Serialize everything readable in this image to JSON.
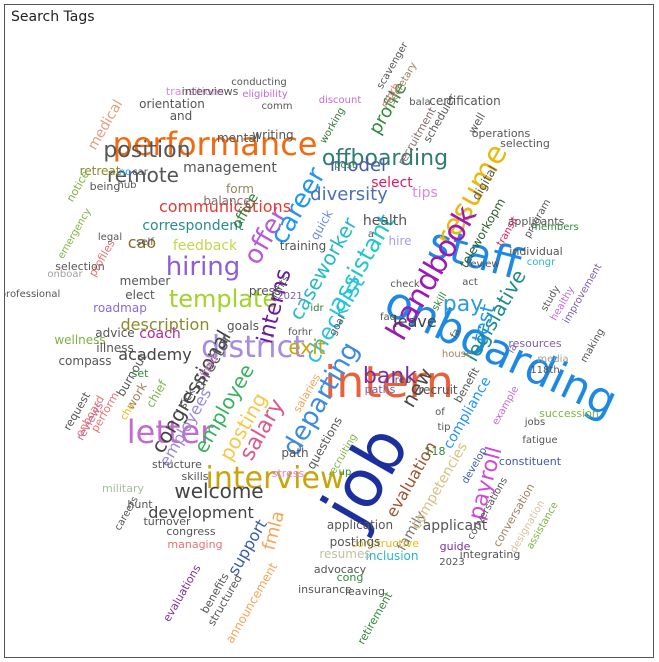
{
  "panel": {
    "title": "Search Tags"
  },
  "word_cloud": {
    "words": [
      {
        "text": "job",
        "color": "#1c2f9e"
      },
      {
        "text": "onboarding",
        "color": "#1e88e5"
      },
      {
        "text": "intern",
        "color": "#e8613a"
      },
      {
        "text": "interview",
        "color": "#c9a40a"
      },
      {
        "text": "staff",
        "color": "#1e88e5"
      },
      {
        "text": "performance",
        "color": "#f26a0f"
      },
      {
        "text": "resume",
        "color": "#e8b90f"
      },
      {
        "text": "handbook",
        "color": "#9c1ab3"
      },
      {
        "text": "letter",
        "color": "#c46bd0"
      },
      {
        "text": "district",
        "color": "#a58ce0"
      },
      {
        "text": "offboarding",
        "color": "#2e7d6f"
      },
      {
        "text": "departing",
        "color": "#3d8be0"
      },
      {
        "text": "assistant",
        "color": "#1fc7c9"
      },
      {
        "text": "hiring",
        "color": "#8e5ed8"
      },
      {
        "text": "offer",
        "color": "#b65bd6"
      },
      {
        "text": "career",
        "color": "#2196f3"
      },
      {
        "text": "template",
        "color": "#a3d32a"
      },
      {
        "text": "checklist",
        "color": "#2bc0e0"
      },
      {
        "text": "salary",
        "color": "#d95a8a"
      },
      {
        "text": "welcome",
        "color": "#444444"
      },
      {
        "text": "employee",
        "color": "#36b35c"
      },
      {
        "text": "posting",
        "color": "#f2c94c"
      },
      {
        "text": "interns",
        "color": "#6a1b9a"
      },
      {
        "text": "caseworker",
        "color": "#27b8c6"
      },
      {
        "text": "pay",
        "color": "#2c9bd6"
      },
      {
        "text": "legislative",
        "color": "#1e8c8c"
      },
      {
        "text": "test",
        "color": "#2196f3"
      },
      {
        "text": "payroll",
        "color": "#d04ad6"
      },
      {
        "text": "position",
        "color": "#555555"
      },
      {
        "text": "remote",
        "color": "#555555"
      },
      {
        "text": "congressional",
        "color": "#444444"
      },
      {
        "text": "bank",
        "color": "#7b2f9e"
      },
      {
        "text": "profile",
        "color": "#2e8b3a"
      },
      {
        "text": "diversity",
        "color": "#4a6fb5"
      },
      {
        "text": "model",
        "color": "#4a5aa5"
      },
      {
        "text": "exit",
        "color": "#c9a40a"
      },
      {
        "text": "new",
        "color": "#4a4a4a"
      },
      {
        "text": "director",
        "color": "#555555"
      },
      {
        "text": "leave",
        "color": "#444444"
      },
      {
        "text": "evaluation",
        "color": "#a0522d"
      },
      {
        "text": "communications",
        "color": "#e53935"
      },
      {
        "text": "correspondent",
        "color": "#2e8b8b"
      },
      {
        "text": "description",
        "color": "#8a8a2a"
      },
      {
        "text": "development",
        "color": "#444444"
      },
      {
        "text": "fmla",
        "color": "#f2a65a"
      },
      {
        "text": "support",
        "color": "#3b5ba5"
      },
      {
        "text": "employees",
        "color": "#9b8ad8"
      },
      {
        "text": "academy",
        "color": "#444444"
      },
      {
        "text": "coach",
        "color": "#b5279e"
      },
      {
        "text": "management",
        "color": "#555555"
      },
      {
        "text": "cao",
        "color": "#8a6d1e"
      },
      {
        "text": "tips",
        "color": "#d88ad8"
      },
      {
        "text": "select",
        "color": "#d81b60"
      },
      {
        "text": "office",
        "color": "#2e7d32"
      },
      {
        "text": "quick",
        "color": "#6a8ae0"
      },
      {
        "text": "feedback",
        "color": "#c0d84a"
      },
      {
        "text": "teleworkopm",
        "color": "#2a5d2a"
      },
      {
        "text": "orientation",
        "color": "#555555"
      },
      {
        "text": "medical",
        "color": "#e0a080"
      },
      {
        "text": "announcement",
        "color": "#f2a65a"
      },
      {
        "text": "health",
        "color": "#555555"
      },
      {
        "text": "compliance",
        "color": "#2196f3"
      },
      {
        "text": "family",
        "color": "#777777"
      },
      {
        "text": "competencies",
        "color": "#d8c080"
      },
      {
        "text": "applicant",
        "color": "#555555"
      },
      {
        "text": "digital",
        "color": "#555555"
      },
      {
        "text": "recruit",
        "color": "#555555"
      },
      {
        "text": "mental",
        "color": "#555555"
      },
      {
        "text": "writing",
        "color": "#555555"
      },
      {
        "text": "form",
        "color": "#8a8a5a"
      },
      {
        "text": "balance",
        "color": "#8a6a6a"
      },
      {
        "text": "training",
        "color": "#555555"
      },
      {
        "text": "press",
        "color": "#555555"
      },
      {
        "text": "member",
        "color": "#555555"
      },
      {
        "text": "elect",
        "color": "#555555"
      },
      {
        "text": "roadmap",
        "color": "#8a6ad8"
      },
      {
        "text": "advice",
        "color": "#555555"
      },
      {
        "text": "wellness",
        "color": "#7cb342"
      },
      {
        "text": "illness",
        "color": "#555555"
      },
      {
        "text": "compass",
        "color": "#555555"
      },
      {
        "text": "request",
        "color": "#555555"
      },
      {
        "text": "onboard",
        "color": "#e57373"
      },
      {
        "text": "reviews",
        "color": "#c46b8a"
      },
      {
        "text": "perform",
        "color": "#e57373"
      },
      {
        "text": "burnout",
        "color": "#555555"
      },
      {
        "text": "work",
        "color": "#a08060"
      },
      {
        "text": "chief",
        "color": "#7cb342"
      },
      {
        "text": "sick",
        "color": "#555555"
      },
      {
        "text": "field",
        "color": "#d888d8"
      },
      {
        "text": "goals",
        "color": "#555555"
      },
      {
        "text": "rights",
        "color": "#555555"
      },
      {
        "text": "for",
        "color": "#555555"
      },
      {
        "text": "hr",
        "color": "#555555"
      },
      {
        "text": "idr",
        "color": "#2e7d32"
      },
      {
        "text": "2021",
        "color": "#7b5ea8"
      },
      {
        "text": "path",
        "color": "#555555"
      },
      {
        "text": "stress",
        "color": "#d888d8"
      },
      {
        "text": "questions",
        "color": "#555555"
      },
      {
        "text": "salaries",
        "color": "#f2a65a"
      },
      {
        "text": "recruiting",
        "color": "#7cb342"
      },
      {
        "text": "up",
        "color": "#2e8b3a"
      },
      {
        "text": "paths",
        "color": "#7b5ea8"
      },
      {
        "text": "rep",
        "color": "#555555"
      },
      {
        "text": "goal",
        "color": "#555555"
      },
      {
        "text": "faq",
        "color": "#555555"
      },
      {
        "text": "check",
        "color": "#555555"
      },
      {
        "text": "hire",
        "color": "#a0a0e0"
      },
      {
        "text": "a",
        "color": "#555555"
      },
      {
        "text": "post",
        "color": "#2e8b3a"
      },
      {
        "text": "working",
        "color": "#2e7d32"
      },
      {
        "text": "discount",
        "color": "#c46bd0"
      },
      {
        "text": "nmrb",
        "color": "#e57373"
      },
      {
        "text": "secretary",
        "color": "#a08060"
      },
      {
        "text": "scavenger",
        "color": "#555555"
      },
      {
        "text": "bala",
        "color": "#555555"
      },
      {
        "text": "recruitment",
        "color": "#8a6a6a"
      },
      {
        "text": "scheduler",
        "color": "#555555"
      },
      {
        "text": "certification",
        "color": "#555555"
      },
      {
        "text": "well",
        "color": "#555555"
      },
      {
        "text": "operations",
        "color": "#555555"
      },
      {
        "text": "selecting",
        "color": "#555555"
      },
      {
        "text": "applicants",
        "color": "#555555"
      },
      {
        "text": "members",
        "color": "#2e8b3a"
      },
      {
        "text": "program",
        "color": "#555555"
      },
      {
        "text": "transit",
        "color": "#d81b60"
      },
      {
        "text": "individual",
        "color": "#555555"
      },
      {
        "text": "congr",
        "color": "#27b8c6"
      },
      {
        "text": "review",
        "color": "#555555"
      },
      {
        "text": "act",
        "color": "#555555"
      },
      {
        "text": "skill",
        "color": "#2e7d32"
      },
      {
        "text": "study",
        "color": "#555555"
      },
      {
        "text": "healthy",
        "color": "#c46bd0"
      },
      {
        "text": "improvement",
        "color": "#7b5ea8"
      },
      {
        "text": "making",
        "color": "#555555"
      },
      {
        "text": "resources",
        "color": "#7b5ea8"
      },
      {
        "text": "media",
        "color": "#a0a0a0"
      },
      {
        "text": "118th",
        "color": "#555555"
      },
      {
        "text": "la",
        "color": "#7b5ea8"
      },
      {
        "text": "house",
        "color": "#a08060"
      },
      {
        "text": "fa",
        "color": "#555555"
      },
      {
        "text": "benefit",
        "color": "#555555"
      },
      {
        "text": "succession",
        "color": "#7cb342"
      },
      {
        "text": "example",
        "color": "#c46bd0"
      },
      {
        "text": "constituent",
        "color": "#3b5ba5"
      },
      {
        "text": "fatigue",
        "color": "#555555"
      },
      {
        "text": "jobs",
        "color": "#555555"
      },
      {
        "text": "of",
        "color": "#555555"
      },
      {
        "text": "118",
        "color": "#2e8b3a"
      },
      {
        "text": "tip",
        "color": "#555555"
      },
      {
        "text": "develop",
        "color": "#3b5ba5"
      },
      {
        "text": "conversations",
        "color": "#555555"
      },
      {
        "text": "conversation",
        "color": "#a08060"
      },
      {
        "text": "designation",
        "color": "#d8c0a0"
      },
      {
        "text": "assistance",
        "color": "#7cb342"
      },
      {
        "text": "guide",
        "color": "#7b2f9e"
      },
      {
        "text": "2023",
        "color": "#555555"
      },
      {
        "text": "integrating",
        "color": "#555555"
      },
      {
        "text": "constructive",
        "color": "#e8b90f"
      },
      {
        "text": "inclusion",
        "color": "#27b8c6"
      },
      {
        "text": "application",
        "color": "#555555"
      },
      {
        "text": "postings",
        "color": "#555555"
      },
      {
        "text": "resumes",
        "color": "#c0c0a0"
      },
      {
        "text": "advocacy",
        "color": "#555555"
      },
      {
        "text": "cong",
        "color": "#2e8b3a"
      },
      {
        "text": "leaving",
        "color": "#555555"
      },
      {
        "text": "insurance",
        "color": "#555555"
      },
      {
        "text": "retirement",
        "color": "#2e8b3a"
      },
      {
        "text": "structured",
        "color": "#555555"
      },
      {
        "text": "benefits",
        "color": "#555555"
      },
      {
        "text": "evaluations",
        "color": "#7b2f9e"
      },
      {
        "text": "managing",
        "color": "#e57373"
      },
      {
        "text": "congress",
        "color": "#555555"
      },
      {
        "text": "turnover",
        "color": "#555555"
      },
      {
        "text": "hunt",
        "color": "#555555"
      },
      {
        "text": "careers",
        "color": "#555555"
      },
      {
        "text": "military",
        "color": "#a0c0a0"
      },
      {
        "text": "skills",
        "color": "#555555"
      },
      {
        "text": "structure",
        "color": "#555555"
      },
      {
        "text": "cha",
        "color": "#e8b90f"
      },
      {
        "text": "set",
        "color": "#2e8b3a"
      },
      {
        "text": "professional",
        "color": "#555555"
      },
      {
        "text": "onboar",
        "color": "#a0a0a0"
      },
      {
        "text": "selection",
        "color": "#555555"
      },
      {
        "text": "profiles",
        "color": "#e57373"
      },
      {
        "text": "emergency",
        "color": "#7cb342"
      },
      {
        "text": "legal",
        "color": "#555555"
      },
      {
        "text": "self",
        "color": "#555555"
      },
      {
        "text": "being",
        "color": "#555555"
      },
      {
        "text": "retreat",
        "color": "#8a8a2a"
      },
      {
        "text": "notice",
        "color": "#7cb342"
      },
      {
        "text": "hub",
        "color": "#555555"
      },
      {
        "text": "car",
        "color": "#555555"
      },
      {
        "text": "no",
        "color": "#2196f3"
      },
      {
        "text": "and",
        "color": "#555555"
      },
      {
        "text": "transitions",
        "color": "#d888d8"
      },
      {
        "text": "interviews",
        "color": "#555555"
      },
      {
        "text": "conducting",
        "color": "#555555"
      },
      {
        "text": "eligibility",
        "color": "#c46bd0"
      },
      {
        "text": "comm",
        "color": "#555555"
      }
    ]
  }
}
